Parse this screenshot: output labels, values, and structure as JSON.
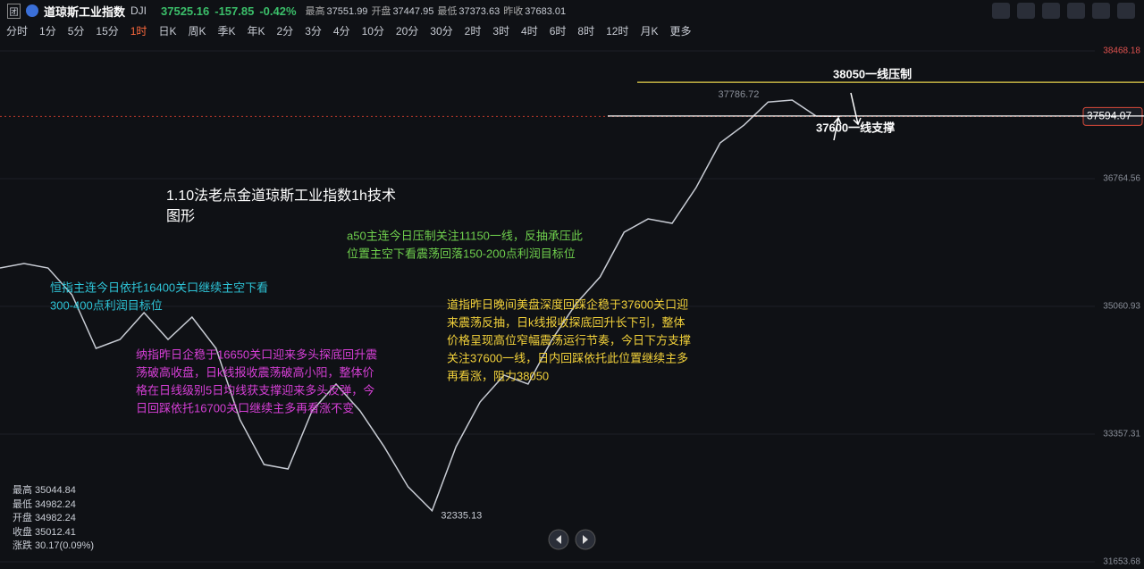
{
  "header": {
    "symbol_name": "道琼斯工业指数",
    "code": "DJI",
    "last": "37525.16",
    "change": "-157.85",
    "change_pct": "-0.42%",
    "stats": [
      {
        "label": "最高",
        "value": "37551.99"
      },
      {
        "label": "开盘",
        "value": "37447.95"
      },
      {
        "label": "最低",
        "value": "37373.63"
      },
      {
        "label": "昨收",
        "value": "37683.01"
      }
    ]
  },
  "toolbar": {
    "intervals": [
      "分时",
      "1分",
      "5分",
      "15分",
      "1时",
      "日K",
      "周K",
      "季K",
      "年K",
      "2分",
      "3分",
      "4分",
      "10分",
      "20分",
      "30分",
      "2时",
      "3时",
      "4时",
      "6时",
      "8时",
      "12时",
      "月K",
      "更多"
    ],
    "active": 4
  },
  "chart_data": {
    "type": "line",
    "values": [
      35573,
      35633,
      35573,
      35216,
      34501,
      34620,
      34977,
      34620,
      34918,
      34501,
      33548,
      32952,
      32893,
      33667,
      34025,
      33667,
      33191,
      32655,
      32335.13,
      33191,
      33786,
      34144,
      34025,
      34620,
      35097,
      35454,
      36050,
      36228,
      36169,
      36645,
      37241,
      37480,
      37786.72,
      37813,
      37599,
      37594.07
    ],
    "ylim": [
      31653.68,
      38468.18
    ],
    "yticks": [
      38468.18,
      36764.56,
      35060.93,
      33357.31,
      31653.68
    ],
    "color": "#c8ccd4",
    "last_price": 37594.07,
    "high_label": "37786.72",
    "low_label": "32335.13",
    "resistance": {
      "value": 38050,
      "label": "38050一线压制",
      "color": "#e8d44d"
    },
    "support": {
      "value": 37600,
      "label": "37600一线支撑",
      "color": "#ffffff"
    }
  },
  "annotations": [
    {
      "color": "#ffffff",
      "lines": [
        "1.10法老点金道琼斯工业指数1h技术",
        "图形"
      ]
    },
    {
      "color": "#6fd04d",
      "lines": [
        "a50主连今日压制关注11150一线，反抽承压此",
        "位置主空下看震荡回落150-200点利润目标位"
      ]
    },
    {
      "color": "#2ec5d8",
      "lines": [
        "恒指主连今日依托16400关口继续主空下看",
        "300-400点利润目标位"
      ]
    },
    {
      "color": "#d63fd6",
      "lines": [
        "纳指昨日企稳于16650关口迎来多头探底回升震",
        "荡破高收盘，日k线报收震荡破高小阳，整体价",
        "格在日线级别5日均线获支撑迎来多头反弹，今",
        "日回踩依托16700关口继续主多再看涨不变"
      ]
    },
    {
      "color": "#f2d13a",
      "lines": [
        "道指昨日晚间美盘深度回踩企稳于37600关口迎",
        "来震荡反抽，日k线报收探底回升长下引，整体",
        "价格呈现高位窄幅震荡运行节奏，今日下方支撑",
        "关注37600一线，日内回踩依托此位置继续主多",
        "再看涨，阻力38050"
      ]
    }
  ],
  "info": [
    {
      "label": "最高",
      "value": "35044.84"
    },
    {
      "label": "最低",
      "value": "34982.24"
    },
    {
      "label": "开盘",
      "value": "34982.24"
    },
    {
      "label": "收盘",
      "value": "35012.41"
    },
    {
      "label": "涨跌",
      "value": "30.17(0.09%)"
    }
  ]
}
